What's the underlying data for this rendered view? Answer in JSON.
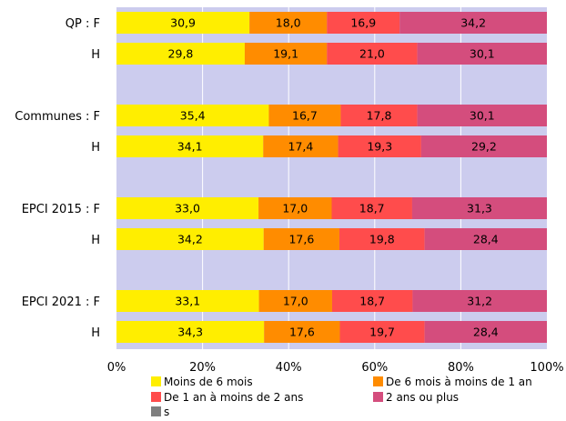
{
  "chart_data": {
    "type": "bar",
    "orientation": "horizontal",
    "stacked": true,
    "percent_stacked": true,
    "categories": [
      "QP : F",
      "H",
      "Communes : F",
      "H",
      "EPCI 2015 : F",
      "H",
      "EPCI 2021 : F",
      "H"
    ],
    "series": [
      {
        "name": "Moins de 6 mois",
        "color": "#ffee00",
        "values": [
          30.9,
          29.8,
          35.4,
          34.1,
          33.0,
          34.2,
          33.1,
          34.3
        ],
        "labels": [
          "30,9",
          "29,8",
          "35,4",
          "34,1",
          "33,0",
          "34,2",
          "33,1",
          "34,3"
        ]
      },
      {
        "name": "De 6 mois à moins de 1 an",
        "color": "#ff8c00",
        "values": [
          18.0,
          19.1,
          16.7,
          17.4,
          17.0,
          17.6,
          17.0,
          17.6
        ],
        "labels": [
          "18,0",
          "19,1",
          "16,7",
          "17,4",
          "17,0",
          "17,6",
          "17,0",
          "17,6"
        ]
      },
      {
        "name": "De 1 an à moins de 2 ans",
        "color": "#ff4c4c",
        "values": [
          16.9,
          21.0,
          17.8,
          19.3,
          18.7,
          19.8,
          18.7,
          19.7
        ],
        "labels": [
          "16,9",
          "21,0",
          "17,8",
          "19,3",
          "18,7",
          "19,8",
          "18,7",
          "19,7"
        ]
      },
      {
        "name": "2 ans ou plus",
        "color": "#d44d7d",
        "values": [
          34.2,
          30.1,
          30.1,
          29.2,
          31.3,
          28.4,
          31.2,
          28.4
        ],
        "labels": [
          "34,2",
          "30,1",
          "30,1",
          "29,2",
          "31,3",
          "28,4",
          "31,2",
          "28,4"
        ]
      },
      {
        "name": "s",
        "color": "#7f7f7f",
        "values": [
          0,
          0,
          0,
          0,
          0,
          0,
          0,
          0
        ],
        "labels": []
      }
    ],
    "x_ticks": [
      "0%",
      "20%",
      "40%",
      "60%",
      "80%",
      "100%"
    ],
    "xlim": [
      0,
      100
    ],
    "grid": true,
    "legend_position": "bottom",
    "plot_background": "#ccccee"
  }
}
